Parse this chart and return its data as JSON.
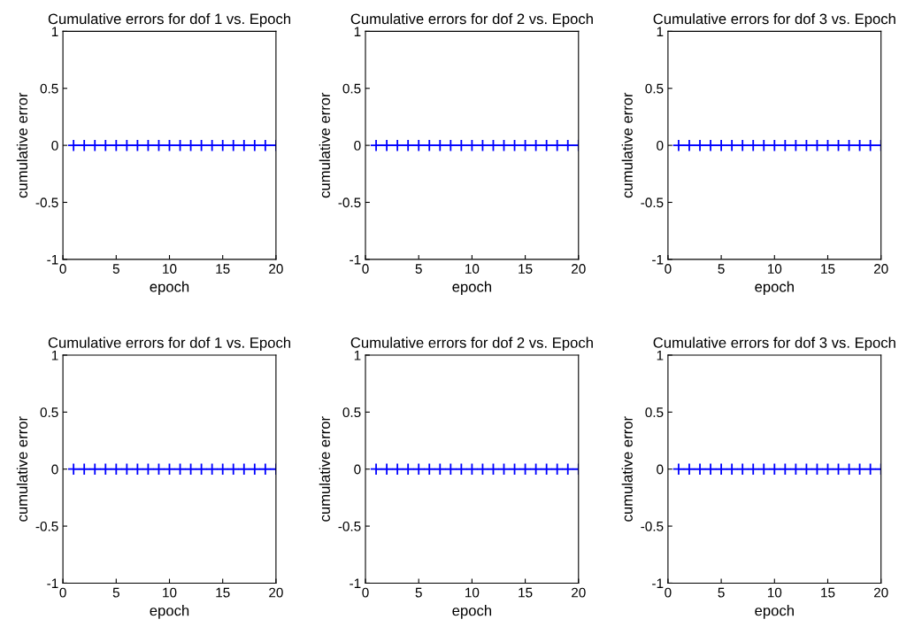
{
  "chart_data": [
    {
      "type": "line",
      "title": "Cumulative errors for dof 1 vs. Epoch",
      "xlabel": "epoch",
      "ylabel": "cumulative error",
      "x": [
        1,
        2,
        3,
        4,
        5,
        6,
        7,
        8,
        9,
        10,
        11,
        12,
        13,
        14,
        15,
        16,
        17,
        18,
        19,
        20
      ],
      "series": [
        {
          "color": "#0000ff",
          "values": [
            0,
            0,
            0,
            0,
            0,
            0,
            0,
            0,
            0,
            0,
            0,
            0,
            0,
            0,
            0,
            0,
            0,
            0,
            0,
            0
          ]
        }
      ],
      "xlim": [
        0,
        20
      ],
      "xticks": [
        0,
        5,
        10,
        15,
        20
      ],
      "ylim": [
        -1,
        1
      ],
      "yticks": [
        -1,
        -0.5,
        0,
        0.5,
        1
      ],
      "marker": "cross",
      "line_style": "solid",
      "grid": false
    },
    {
      "type": "line",
      "title": "Cumulative errors for dof 2 vs. Epoch",
      "xlabel": "epoch",
      "ylabel": "cumulative error",
      "x": [
        1,
        2,
        3,
        4,
        5,
        6,
        7,
        8,
        9,
        10,
        11,
        12,
        13,
        14,
        15,
        16,
        17,
        18,
        19,
        20
      ],
      "series": [
        {
          "color": "#0000ff",
          "values": [
            0,
            0,
            0,
            0,
            0,
            0,
            0,
            0,
            0,
            0,
            0,
            0,
            0,
            0,
            0,
            0,
            0,
            0,
            0,
            0
          ]
        }
      ],
      "xlim": [
        0,
        20
      ],
      "xticks": [
        0,
        5,
        10,
        15,
        20
      ],
      "ylim": [
        -1,
        1
      ],
      "yticks": [
        -1,
        -0.5,
        0,
        0.5,
        1
      ],
      "marker": "cross",
      "line_style": "solid",
      "grid": false
    },
    {
      "type": "line",
      "title": "Cumulative errors for dof 3 vs. Epoch",
      "xlabel": "epoch",
      "ylabel": "cumulative error",
      "x": [
        1,
        2,
        3,
        4,
        5,
        6,
        7,
        8,
        9,
        10,
        11,
        12,
        13,
        14,
        15,
        16,
        17,
        18,
        19,
        20
      ],
      "series": [
        {
          "color": "#0000ff",
          "values": [
            0,
            0,
            0,
            0,
            0,
            0,
            0,
            0,
            0,
            0,
            0,
            0,
            0,
            0,
            0,
            0,
            0,
            0,
            0,
            0
          ]
        }
      ],
      "xlim": [
        0,
        20
      ],
      "xticks": [
        0,
        5,
        10,
        15,
        20
      ],
      "ylim": [
        -1,
        1
      ],
      "yticks": [
        -1,
        -0.5,
        0,
        0.5,
        1
      ],
      "marker": "cross",
      "line_style": "solid",
      "grid": false
    },
    {
      "type": "line",
      "title": "Cumulative errors for dof 1 vs. Epoch",
      "xlabel": "epoch",
      "ylabel": "cumulative error",
      "x": [
        1,
        2,
        3,
        4,
        5,
        6,
        7,
        8,
        9,
        10,
        11,
        12,
        13,
        14,
        15,
        16,
        17,
        18,
        19,
        20
      ],
      "series": [
        {
          "color": "#0000ff",
          "values": [
            0,
            0,
            0,
            0,
            0,
            0,
            0,
            0,
            0,
            0,
            0,
            0,
            0,
            0,
            0,
            0,
            0,
            0,
            0,
            0
          ]
        }
      ],
      "xlim": [
        0,
        20
      ],
      "xticks": [
        0,
        5,
        10,
        15,
        20
      ],
      "ylim": [
        -1,
        1
      ],
      "yticks": [
        -1,
        -0.5,
        0,
        0.5,
        1
      ],
      "marker": "cross",
      "line_style": "solid",
      "grid": false
    },
    {
      "type": "line",
      "title": "Cumulative errors for dof 2 vs. Epoch",
      "xlabel": "epoch",
      "ylabel": "cumulative error",
      "x": [
        1,
        2,
        3,
        4,
        5,
        6,
        7,
        8,
        9,
        10,
        11,
        12,
        13,
        14,
        15,
        16,
        17,
        18,
        19,
        20
      ],
      "series": [
        {
          "color": "#0000ff",
          "values": [
            0,
            0,
            0,
            0,
            0,
            0,
            0,
            0,
            0,
            0,
            0,
            0,
            0,
            0,
            0,
            0,
            0,
            0,
            0,
            0
          ]
        }
      ],
      "xlim": [
        0,
        20
      ],
      "xticks": [
        0,
        5,
        10,
        15,
        20
      ],
      "ylim": [
        -1,
        1
      ],
      "yticks": [
        -1,
        -0.5,
        0,
        0.5,
        1
      ],
      "marker": "cross",
      "line_style": "solid",
      "grid": false
    },
    {
      "type": "line",
      "title": "Cumulative errors for dof 3 vs. Epoch",
      "xlabel": "epoch",
      "ylabel": "cumulative error",
      "x": [
        1,
        2,
        3,
        4,
        5,
        6,
        7,
        8,
        9,
        10,
        11,
        12,
        13,
        14,
        15,
        16,
        17,
        18,
        19,
        20
      ],
      "series": [
        {
          "color": "#0000ff",
          "values": [
            0,
            0,
            0,
            0,
            0,
            0,
            0,
            0,
            0,
            0,
            0,
            0,
            0,
            0,
            0,
            0,
            0,
            0,
            0,
            0
          ]
        }
      ],
      "xlim": [
        0,
        20
      ],
      "xticks": [
        0,
        5,
        10,
        15,
        20
      ],
      "ylim": [
        -1,
        1
      ],
      "yticks": [
        -1,
        -0.5,
        0,
        0.5,
        1
      ],
      "marker": "cross",
      "line_style": "solid",
      "grid": false
    }
  ]
}
